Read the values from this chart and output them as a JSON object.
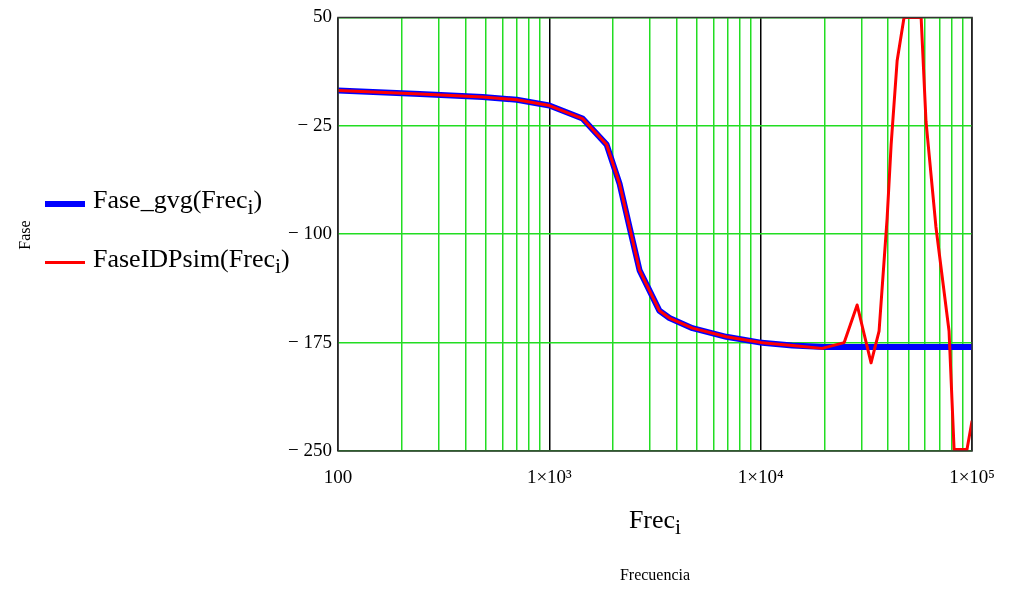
{
  "chart_data": {
    "type": "line",
    "xlabel": "Frec$_{i}$",
    "annotations": [
      "Frecuencia",
      "Fase"
    ],
    "log": "x",
    "grid": true,
    "legend": "left",
    "marker": "none",
    "line_style": "solid",
    "xlim": [
      100,
      100000
    ],
    "ylim": [
      -250,
      50
    ],
    "xticks": [
      100,
      {
        "value": 200,
        "label": null
      },
      {
        "value": 300,
        "label": null
      },
      {
        "value": 400,
        "label": null
      },
      {
        "value": 500,
        "label": null
      },
      {
        "value": 600,
        "label": null
      },
      {
        "value": 700,
        "label": null
      },
      {
        "value": 800,
        "label": null
      },
      {
        "value": 900,
        "label": null
      },
      {
        "value": 1000,
        "label": "1×10³"
      },
      {
        "value": 2000,
        "label": null
      },
      {
        "value": 3000,
        "label": null
      },
      {
        "value": 4000,
        "label": null
      },
      {
        "value": 5000,
        "label": null
      },
      {
        "value": 6000,
        "label": null
      },
      {
        "value": 7000,
        "label": null
      },
      {
        "value": 8000,
        "label": null
      },
      {
        "value": 9000,
        "label": null
      },
      {
        "value": 10000,
        "label": "1×10⁴"
      },
      {
        "value": 20000,
        "label": null
      },
      {
        "value": 30000,
        "label": null
      },
      {
        "value": 40000,
        "label": null
      },
      {
        "value": 50000,
        "label": null
      },
      {
        "value": 60000,
        "label": null
      },
      {
        "value": 70000,
        "label": null
      },
      {
        "value": 80000,
        "label": null
      },
      {
        "value": 90000,
        "label": null
      },
      {
        "value": 100000,
        "label": "1×10⁵"
      }
    ],
    "yticks": [
      {
        "value": -250,
        "label": "− 250"
      },
      {
        "value": -175,
        "label": "− 175"
      },
      {
        "value": -100,
        "label": "− 100"
      },
      {
        "value": -25,
        "label": "− 25"
      },
      50
    ],
    "series": [
      {
        "name": "Fase_gvg(Frec$_{i}$)",
        "color": "#0000ff",
        "x": [
          100,
          244,
          484,
          701,
          1000,
          1435,
          1866,
          2148,
          2394,
          2672,
          3319,
          3700,
          4753,
          6874,
          10000,
          14090,
          20000,
          40000,
          100000
        ],
        "values": [
          -0.5,
          -3,
          -5,
          -7,
          -11,
          -20,
          -38,
          -65,
          -95,
          -125,
          -153,
          -158,
          -165,
          -171,
          -175,
          -177,
          -178,
          -178,
          -178
        ]
      },
      {
        "name": "FaseIDPsim(Frec$_{i}$)",
        "color": "#ff0000",
        "x": [
          100,
          244,
          484,
          701,
          1000,
          1435,
          1866,
          2148,
          2394,
          2672,
          3319,
          3700,
          4753,
          6874,
          10000,
          14090,
          19540,
          24830,
          28590,
          33270,
          36300,
          39630,
          41400,
          44200,
          47650,
          57400,
          60540,
          67450,
          77800,
          82200,
          94600,
          100000
        ],
        "values": [
          -0.5,
          -3,
          -5,
          -7,
          -11,
          -20,
          -38,
          -65,
          -95,
          -125,
          -153,
          -158,
          -165,
          -171,
          -175,
          -177,
          -179,
          -175,
          -149,
          -189,
          -167,
          -89,
          -38,
          20,
          50,
          50,
          -22,
          -95,
          -167,
          -249,
          -249,
          -229
        ]
      }
    ]
  }
}
